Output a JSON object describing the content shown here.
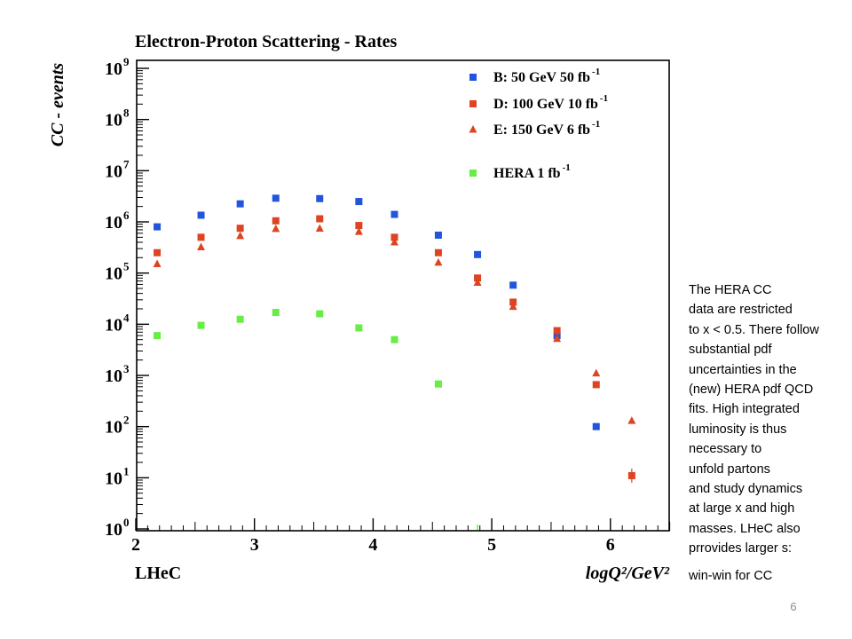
{
  "chart_data": {
    "type": "scatter",
    "title": "Electron-Proton Scattering - Rates",
    "ylabel": "CC - events",
    "xlabel": "logQ²/GeV²",
    "experiment_label": "LHeC",
    "xlim": [
      2,
      6.5
    ],
    "ylim": [
      1,
      1000000000
    ],
    "y_scale": "log",
    "x_ticks": [
      "2",
      "3",
      "4",
      "5",
      "6"
    ],
    "y_ticks": [
      {
        "base": "10",
        "exp": "0"
      },
      {
        "base": "10",
        "exp": "1"
      },
      {
        "base": "10",
        "exp": "2"
      },
      {
        "base": "10",
        "exp": "3"
      },
      {
        "base": "10",
        "exp": "4"
      },
      {
        "base": "10",
        "exp": "5"
      },
      {
        "base": "10",
        "exp": "6"
      },
      {
        "base": "10",
        "exp": "7"
      },
      {
        "base": "10",
        "exp": "8"
      },
      {
        "base": "10",
        "exp": "9"
      }
    ],
    "grid": false,
    "legend_position": "top-right",
    "series": [
      {
        "name": "B: 50 GeV 50 fb",
        "name_sup": "-1",
        "color": "#2255dd",
        "marker": "square",
        "points": [
          [
            2.18,
            800000
          ],
          [
            2.55,
            1350000
          ],
          [
            2.88,
            2250000
          ],
          [
            3.18,
            2900000
          ],
          [
            3.55,
            2850000
          ],
          [
            3.88,
            2500000
          ],
          [
            4.18,
            1400000
          ],
          [
            4.55,
            550000
          ],
          [
            4.88,
            230000
          ],
          [
            5.18,
            58000
          ],
          [
            5.55,
            6000
          ],
          [
            5.88,
            100
          ]
        ]
      },
      {
        "name": "D: 100 GeV 10 fb",
        "name_sup": "-1",
        "color": "#dd4422",
        "marker": "square",
        "points": [
          [
            2.18,
            250000
          ],
          [
            2.55,
            500000
          ],
          [
            2.88,
            750000
          ],
          [
            3.18,
            1050000
          ],
          [
            3.55,
            1150000
          ],
          [
            3.88,
            850000
          ],
          [
            4.18,
            500000
          ],
          [
            4.55,
            250000
          ],
          [
            4.88,
            80000
          ],
          [
            5.18,
            27000
          ],
          [
            5.55,
            7500
          ],
          [
            5.88,
            660
          ],
          [
            6.18,
            11
          ]
        ]
      },
      {
        "name": "E: 150 GeV 6 fb",
        "name_sup": "-1",
        "color": "#dd4422",
        "marker": "triangle",
        "points": [
          [
            2.18,
            150000
          ],
          [
            2.55,
            320000
          ],
          [
            2.88,
            530000
          ],
          [
            3.18,
            730000
          ],
          [
            3.55,
            740000
          ],
          [
            3.88,
            640000
          ],
          [
            4.18,
            400000
          ],
          [
            4.55,
            160000
          ],
          [
            4.88,
            65000
          ],
          [
            5.18,
            22000
          ],
          [
            5.55,
            5200
          ],
          [
            5.88,
            1100
          ],
          [
            6.18,
            130
          ]
        ]
      },
      {
        "name": "HERA  1 fb",
        "name_sup": "-1",
        "color": "#66ee44",
        "marker": "square",
        "points": [
          [
            2.18,
            6000
          ],
          [
            2.55,
            9500
          ],
          [
            2.88,
            12500
          ],
          [
            3.18,
            17000
          ],
          [
            3.55,
            16000
          ],
          [
            3.88,
            8500
          ],
          [
            4.18,
            5000
          ],
          [
            4.55,
            680
          ],
          [
            4.88,
            1
          ]
        ]
      }
    ]
  },
  "note": {
    "lines": [
      "The HERA CC",
      "data are restricted",
      "to x < 0.5. There follow",
      "substantial pdf",
      "uncertainties in the",
      "(new) HERA pdf QCD",
      "fits. High integrated",
      "luminosity is thus",
      "necessary to",
      "unfold partons",
      "and study dynamics",
      "at large x and high",
      "masses. LHeC also",
      "prrovides larger s:"
    ],
    "last_line": "win-win for CC"
  },
  "page_number": "6"
}
